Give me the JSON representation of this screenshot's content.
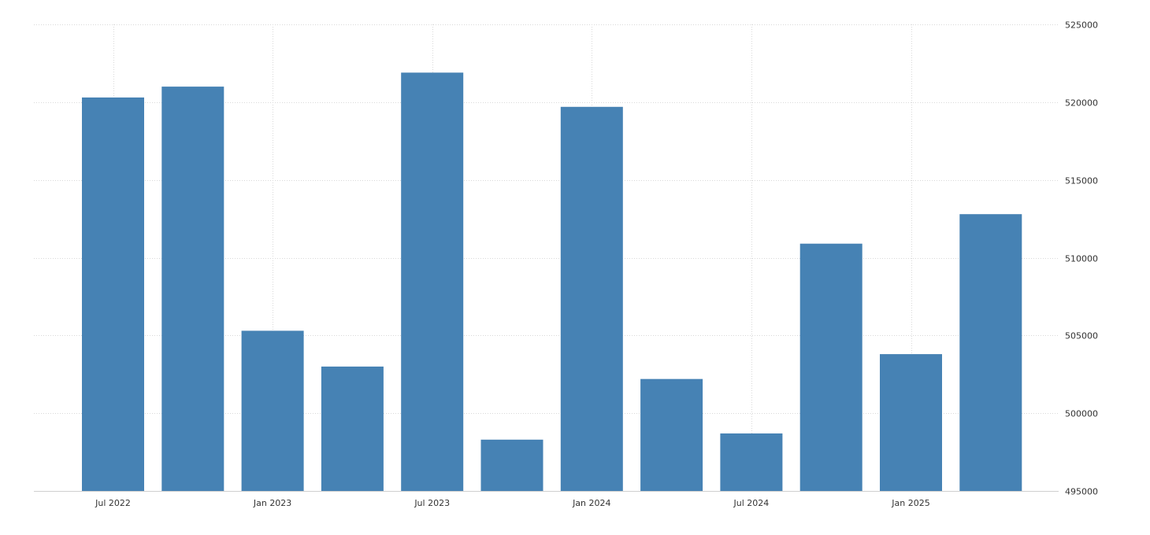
{
  "chart_data": {
    "type": "bar",
    "title": "",
    "xlabel": "",
    "ylabel": "",
    "categories": [
      "2022-07",
      "2022-10",
      "2023-01",
      "2023-04",
      "2023-07",
      "2023-10",
      "2024-01",
      "2024-04",
      "2024-07",
      "2024-10",
      "2025-01",
      "2025-04"
    ],
    "values": [
      520300,
      521000,
      505300,
      503000,
      521900,
      498300,
      519700,
      502200,
      498700,
      510900,
      503800,
      512800
    ],
    "x_tick_labels": [
      {
        "category": "2022-07",
        "label": "Jul 2022"
      },
      {
        "category": "2023-01",
        "label": "Jan 2023"
      },
      {
        "category": "2023-07",
        "label": "Jul 2023"
      },
      {
        "category": "2024-01",
        "label": "Jan 2024"
      },
      {
        "category": "2024-07",
        "label": "Jul 2024"
      },
      {
        "category": "2025-01",
        "label": "Jan 2025"
      }
    ],
    "y_ticks": [
      "495000",
      "500000",
      "505000",
      "510000",
      "515000",
      "520000",
      "525000"
    ],
    "ylim": [
      495000,
      525000
    ],
    "y_axis_position": "right",
    "grid": true,
    "legend": "none",
    "colors": {
      "bar": "#4682b4",
      "grid": "#d9d9d9",
      "text": "#333333"
    }
  }
}
